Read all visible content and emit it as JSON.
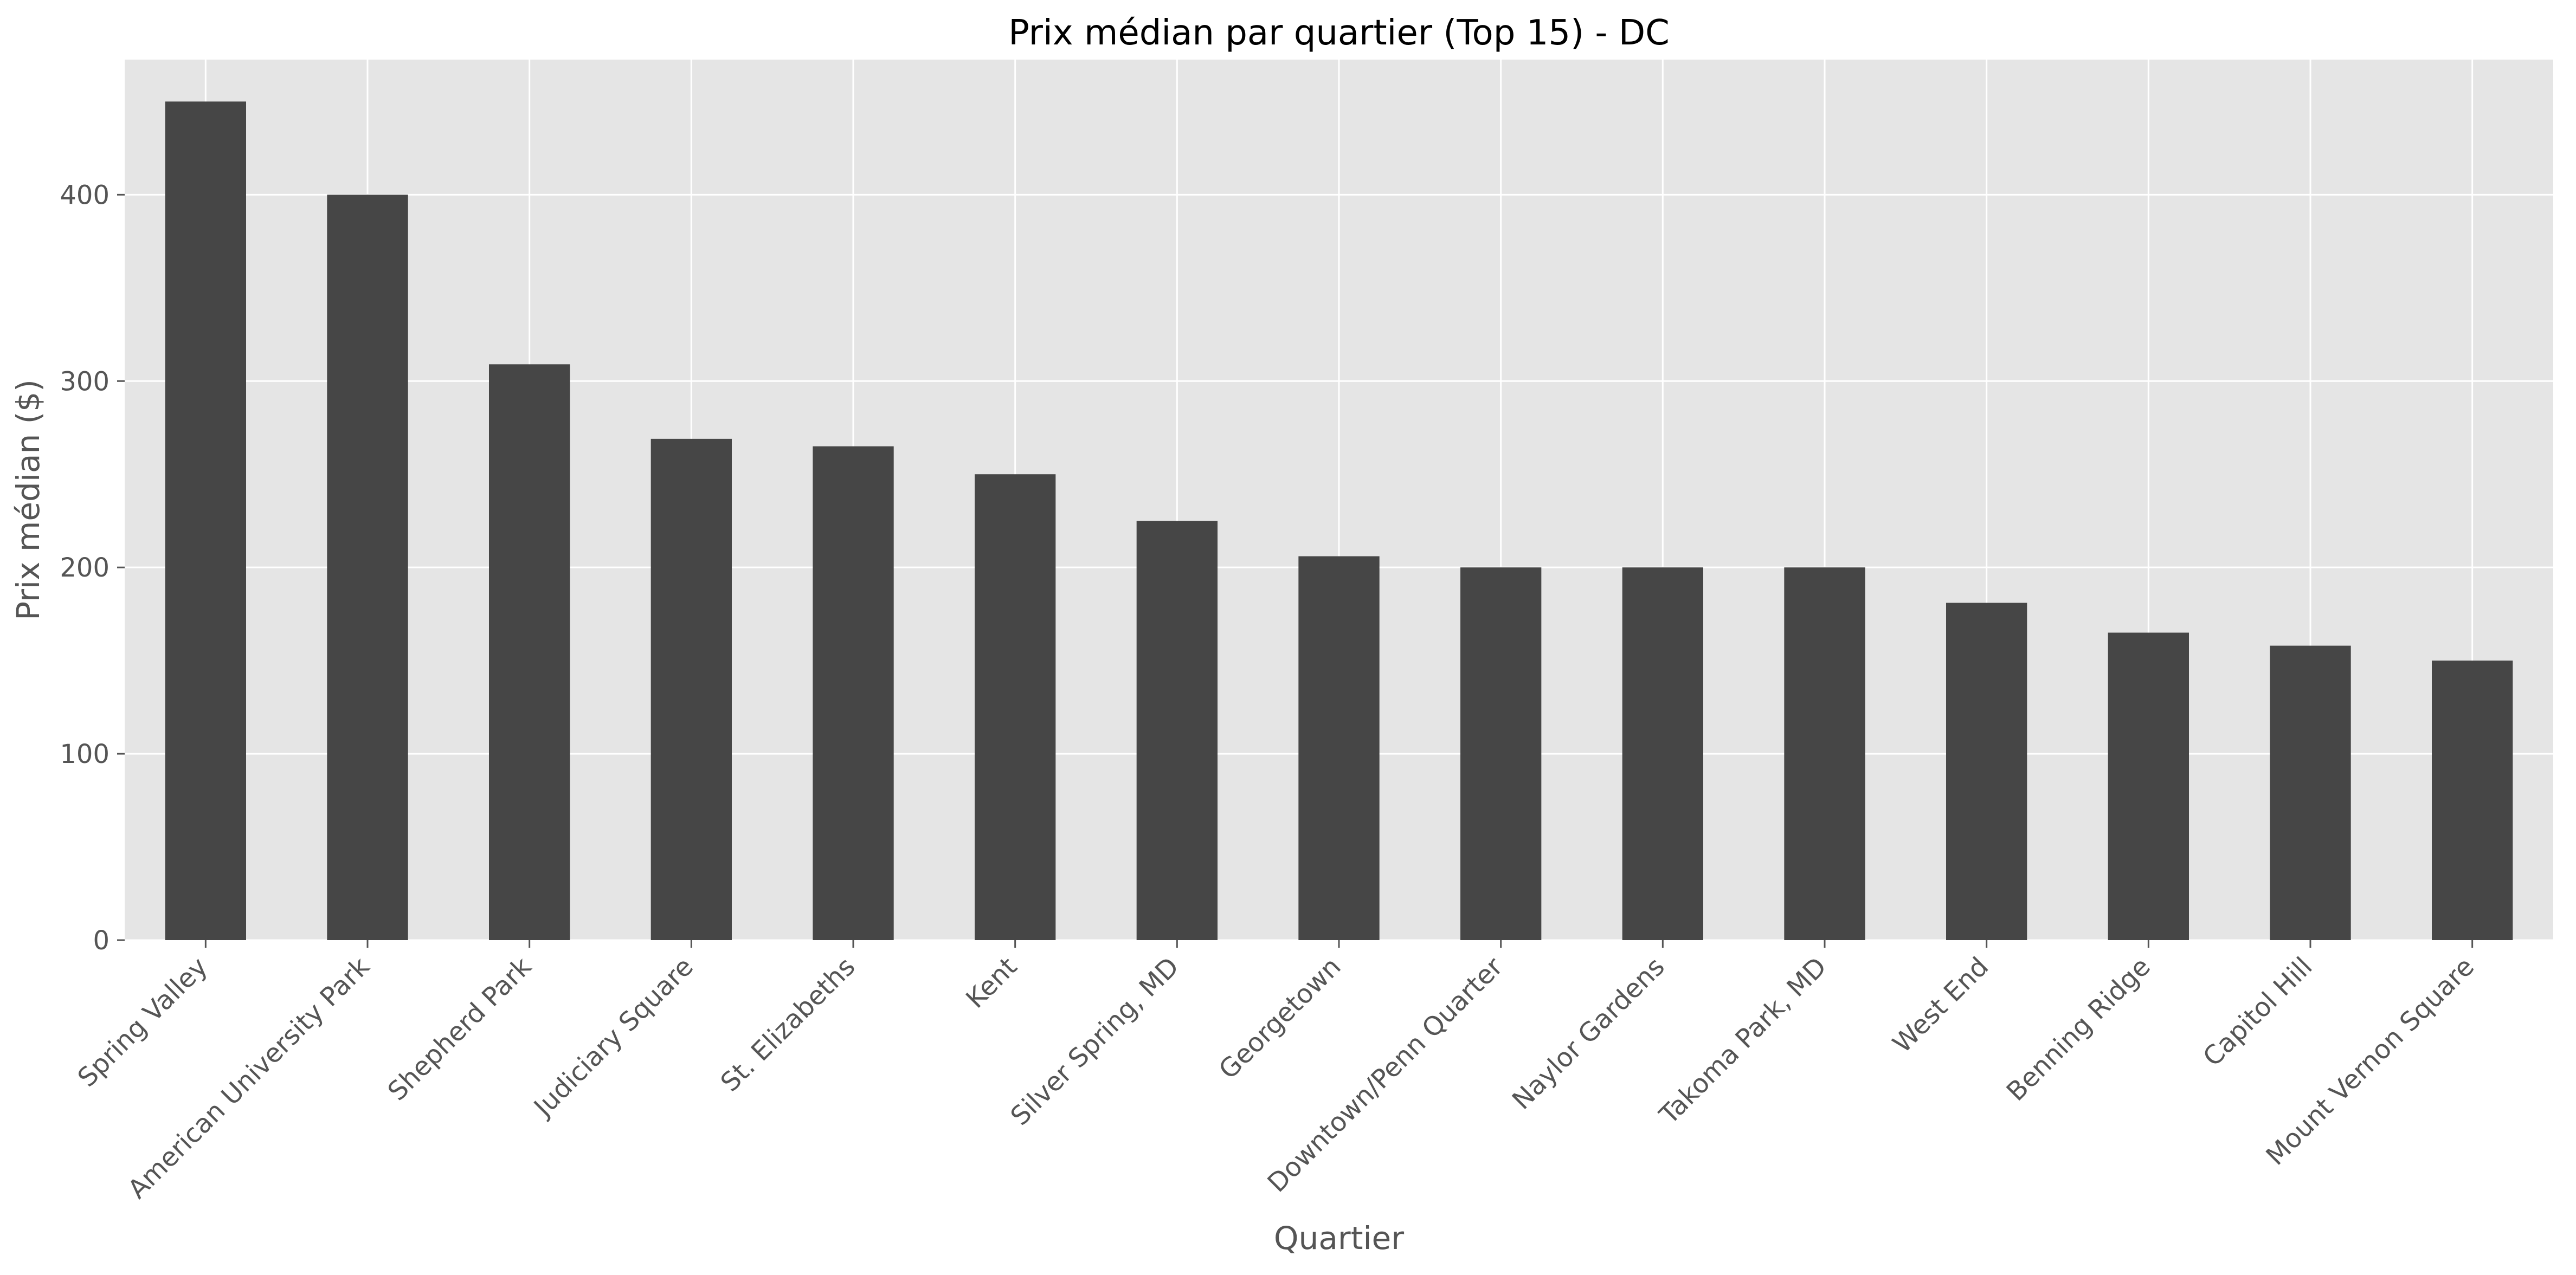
{
  "chart_data": {
    "type": "bar",
    "title": "Prix médian par quartier (Top 15) - DC",
    "xlabel": "Quartier",
    "ylabel": "Prix médian ($)",
    "categories": [
      "Spring Valley",
      "American University Park",
      "Shepherd Park",
      "Judiciary Square",
      "St. Elizabeths",
      "Kent",
      "Silver Spring, MD",
      "Georgetown",
      "Downtown/Penn Quarter",
      "Naylor Gardens",
      "Takoma Park, MD",
      "West End",
      "Benning Ridge",
      "Capitol Hill",
      "Mount Vernon Square"
    ],
    "values": [
      450,
      400,
      309,
      269,
      265,
      250,
      225,
      206,
      200,
      200,
      200,
      181,
      165,
      158,
      150
    ],
    "yticks": [
      0,
      100,
      200,
      300,
      400
    ],
    "ylim": [
      0,
      472.5
    ],
    "grid": true,
    "colors": {
      "bar": "#464646",
      "plot_background": "#e5e5e5",
      "grid": "#ffffff",
      "tick_text": "#555555",
      "title_text": "#000000"
    }
  }
}
